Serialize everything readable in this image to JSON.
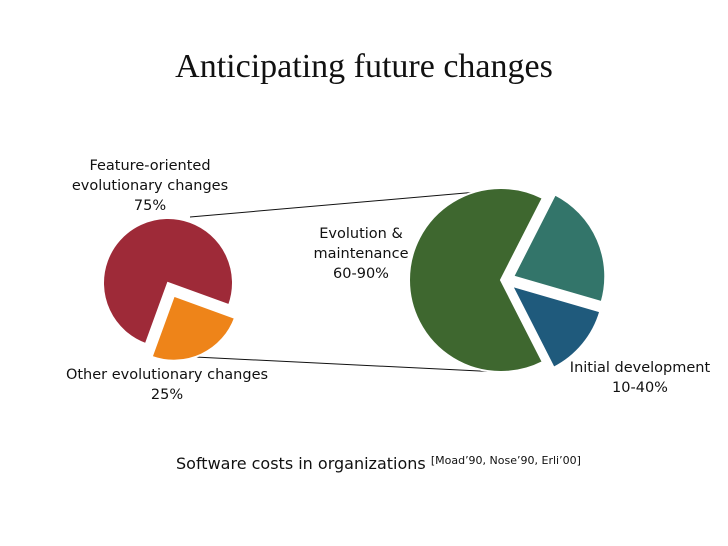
{
  "title": "Anticipating future changes",
  "chart_data": [
    {
      "type": "pie",
      "categories": [
        "Feature-oriented evolutionary changes",
        "Other evolutionary changes"
      ],
      "values": [
        75,
        25
      ],
      "value_labels": [
        "75%",
        "25%"
      ],
      "colors": [
        "#9e2a38",
        "#ee8419"
      ]
    },
    {
      "type": "pie",
      "categories": [
        "Evolution & maintenance",
        null,
        "Initial development"
      ],
      "values": [
        65,
        22,
        13
      ],
      "annotations": [
        "60-90%",
        null,
        "10-40%"
      ],
      "colors": [
        "#3e672f",
        "#33756a",
        "#1f5a7c"
      ]
    }
  ],
  "caption": "Software costs in organizations",
  "citation": "[Moad’90, Nose’90, Erli’00]"
}
